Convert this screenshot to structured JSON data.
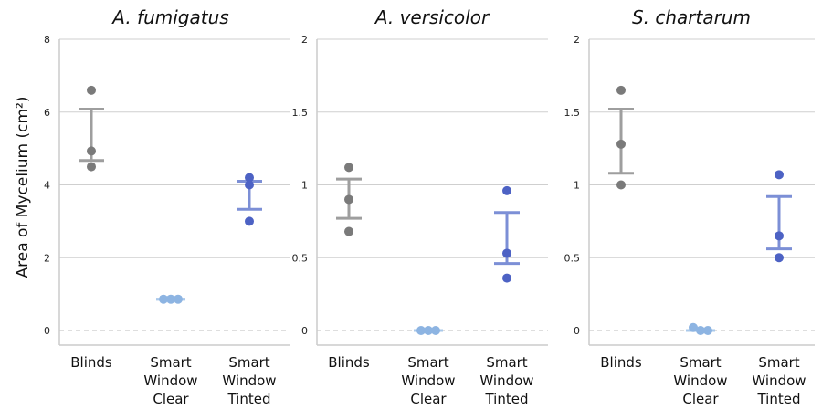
{
  "figure": {
    "ylabel": "Area of Mycelium (cm²)"
  },
  "chart_data": [
    {
      "type": "scatter",
      "title": "A. fumigatus",
      "ylabel": "Area of Mycelium (cm²)",
      "ylim": [
        0,
        8
      ],
      "yticks": [
        0,
        2,
        4,
        6,
        8
      ],
      "ytick_labels": [
        "0",
        "2",
        "4",
        "6",
        "8"
      ],
      "categories": [
        "Blinds",
        "Smart Window Clear",
        "Smart Window Tinted"
      ],
      "category_labels": [
        [
          "Blinds"
        ],
        [
          "Smart",
          "Window",
          "Clear"
        ],
        [
          "Smart",
          "Window",
          "Tinted"
        ]
      ],
      "grid": true,
      "points": [
        [
          6.6,
          4.93,
          4.5
        ],
        [
          0.86,
          0.86,
          0.86
        ],
        [
          4.2,
          4.0,
          3.0
        ]
      ],
      "error_bars": [
        [
          4.67,
          6.08
        ],
        [
          0.86,
          0.86
        ],
        [
          3.33,
          4.1
        ]
      ],
      "colors": [
        "#7a7a7a",
        "#8db4e2",
        "#4d62c4"
      ],
      "errorbar_colors": [
        "#9e9e9e",
        "#a9c8ea",
        "#7c8fd6"
      ]
    },
    {
      "type": "scatter",
      "title": "A. versicolor",
      "ylabel": "",
      "ylim": [
        0,
        2
      ],
      "yticks": [
        0,
        0.5,
        1,
        1.5,
        2
      ],
      "ytick_labels": [
        "0",
        "0.5",
        "1",
        "1.5",
        "2"
      ],
      "categories": [
        "Blinds",
        "Smart Window Clear",
        "Smart Window Tinted"
      ],
      "category_labels": [
        [
          "Blinds"
        ],
        [
          "Smart",
          "Window",
          "Clear"
        ],
        [
          "Smart",
          "Window",
          "Tinted"
        ]
      ],
      "grid": true,
      "points": [
        [
          1.12,
          0.9,
          0.68
        ],
        [
          0.0,
          0.0,
          0.0
        ],
        [
          0.96,
          0.53,
          0.36
        ]
      ],
      "error_bars": [
        [
          0.77,
          1.04
        ],
        [
          0.0,
          0.0
        ],
        [
          0.46,
          0.81
        ]
      ],
      "colors": [
        "#7a7a7a",
        "#8db4e2",
        "#4d62c4"
      ],
      "errorbar_colors": [
        "#9e9e9e",
        "#a9c8ea",
        "#7c8fd6"
      ]
    },
    {
      "type": "scatter",
      "title": "S. chartarum",
      "ylabel": "",
      "ylim": [
        0,
        2
      ],
      "yticks": [
        0,
        0.5,
        1,
        1.5,
        2
      ],
      "ytick_labels": [
        "0",
        "0.5",
        "1",
        "1.5",
        "2"
      ],
      "categories": [
        "Blinds",
        "Smart Window Clear",
        "Smart Window Tinted"
      ],
      "category_labels": [
        [
          "Blinds"
        ],
        [
          "Smart",
          "Window",
          "Clear"
        ],
        [
          "Smart",
          "Window",
          "Tinted"
        ]
      ],
      "grid": true,
      "points": [
        [
          1.65,
          1.28,
          1.0
        ],
        [
          0.02,
          0.0,
          0.0
        ],
        [
          1.07,
          0.65,
          0.5
        ]
      ],
      "error_bars": [
        [
          1.08,
          1.52
        ],
        [
          0.0,
          0.0
        ],
        [
          0.56,
          0.92
        ]
      ],
      "colors": [
        "#7a7a7a",
        "#8db4e2",
        "#4d62c4"
      ],
      "errorbar_colors": [
        "#9e9e9e",
        "#a9c8ea",
        "#7c8fd6"
      ]
    }
  ]
}
